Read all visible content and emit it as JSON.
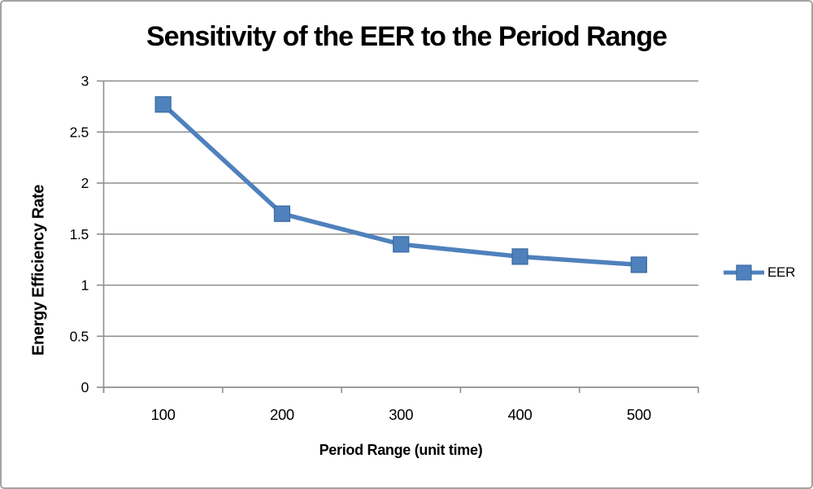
{
  "frame": {
    "background": "#ffffff",
    "border_color": "#a3a3a3"
  },
  "chart_data": {
    "type": "line",
    "title": "Sensitivity of the EER to the Period Range",
    "xlabel": "Period Range (unit time)",
    "ylabel": "Energy Efficiency Rate",
    "categories": [
      100,
      200,
      300,
      400,
      500
    ],
    "x_tick_labels": [
      "100",
      "200",
      "300",
      "400",
      "500"
    ],
    "series": [
      {
        "name": "EER",
        "values": [
          2.77,
          1.7,
          1.4,
          1.28,
          1.2
        ],
        "color": "#4f81bd",
        "marker": "square",
        "marker_edge": "#3a68a0"
      }
    ],
    "ylim": [
      0,
      3
    ],
    "y_tick_step": 0.5,
    "y_tick_labels": [
      "0",
      "0.5",
      "1",
      "1.5",
      "2",
      "2.5",
      "3"
    ],
    "grid": "horizontal-only",
    "gridline_color": "#8e8e8e",
    "axis_color": "#8e8e8e",
    "legend": {
      "position": "right",
      "entries": [
        "EER"
      ]
    }
  }
}
